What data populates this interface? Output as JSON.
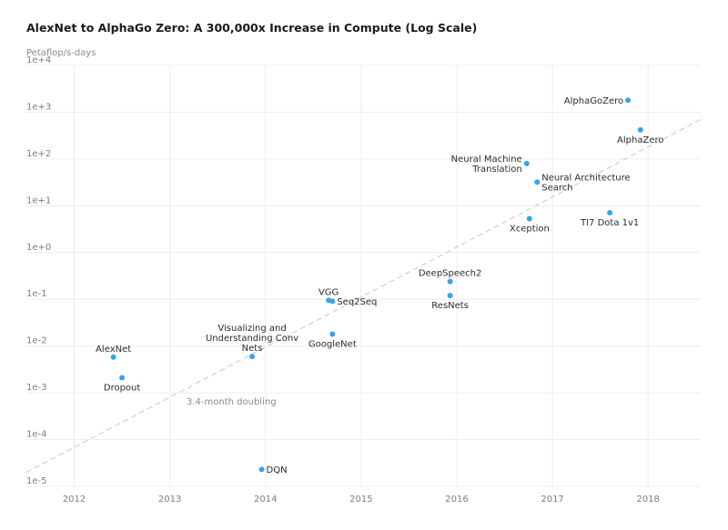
{
  "chart_data": {
    "type": "scatter",
    "title": "AlexNet to AlphaGo Zero: A 300,000x Increase in Compute (Log Scale)",
    "ylabel": "Petaflop/s-days",
    "xlabel": "",
    "yscale": "log",
    "ylim": [
      1e-05,
      10000
    ],
    "xlim": [
      2011.5,
      2018.55
    ],
    "y_ticks": [
      {
        "value": 10000,
        "label": "1e+4"
      },
      {
        "value": 1000,
        "label": "1e+3"
      },
      {
        "value": 100,
        "label": "1e+2"
      },
      {
        "value": 10,
        "label": "1e+1"
      },
      {
        "value": 1,
        "label": "1e+0"
      },
      {
        "value": 0.1,
        "label": "1e-1"
      },
      {
        "value": 0.01,
        "label": "1e-2"
      },
      {
        "value": 0.001,
        "label": "1e-3"
      },
      {
        "value": 0.0001,
        "label": "1e-4"
      },
      {
        "value": 1e-05,
        "label": "1e-5"
      }
    ],
    "x_ticks": [
      {
        "value": 2012,
        "label": "2012"
      },
      {
        "value": 2013,
        "label": "2013"
      },
      {
        "value": 2014,
        "label": "2014"
      },
      {
        "value": 2015,
        "label": "2015"
      },
      {
        "value": 2016,
        "label": "2016"
      },
      {
        "value": 2017,
        "label": "2017"
      },
      {
        "value": 2018,
        "label": "2018"
      }
    ],
    "grid": true,
    "color": "#3aa3e3",
    "trend": {
      "label": "3.4-month doubling",
      "start": [
        2011.5,
        2e-05
      ],
      "end": [
        2018.55,
        700
      ]
    },
    "points": [
      {
        "name": "AlexNet",
        "x": 2012.41,
        "y": 0.0058,
        "lines": [
          "AlexNet"
        ],
        "label_pos": "above"
      },
      {
        "name": "Dropout",
        "x": 2012.5,
        "y": 0.0021,
        "lines": [
          "Dropout"
        ],
        "label_pos": "below"
      },
      {
        "name": "Visualizing and Understanding Conv Nets",
        "x": 2013.86,
        "y": 0.006,
        "lines": [
          "Visualizing and",
          "Understanding Conv",
          "Nets"
        ],
        "label_pos": "above"
      },
      {
        "name": "DQN",
        "x": 2013.96,
        "y": 2.3e-05,
        "lines": [
          "DQN"
        ],
        "label_pos": "right"
      },
      {
        "name": "VGG",
        "x": 2014.66,
        "y": 0.095,
        "lines": [
          "VGG"
        ],
        "label_pos": "above"
      },
      {
        "name": "Seq2Seq",
        "x": 2014.7,
        "y": 0.091,
        "lines": [
          "Seq2Seq"
        ],
        "label_pos": "right"
      },
      {
        "name": "GoogleNet",
        "x": 2014.7,
        "y": 0.018,
        "lines": [
          "GoogleNet"
        ],
        "label_pos": "below"
      },
      {
        "name": "DeepSpeech2",
        "x": 2015.93,
        "y": 0.24,
        "lines": [
          "DeepSpeech2"
        ],
        "label_pos": "above"
      },
      {
        "name": "ResNets",
        "x": 2015.93,
        "y": 0.12,
        "lines": [
          "ResNets"
        ],
        "label_pos": "below"
      },
      {
        "name": "Neural Machine Translation",
        "x": 2016.73,
        "y": 80,
        "lines": [
          "Neural Machine",
          "Translation"
        ],
        "label_pos": "left"
      },
      {
        "name": "Neural Architecture Search",
        "x": 2016.84,
        "y": 32,
        "lines": [
          "Neural Architecture",
          "Search"
        ],
        "label_pos": "right"
      },
      {
        "name": "Xception",
        "x": 2016.76,
        "y": 5.3,
        "lines": [
          "Xception"
        ],
        "label_pos": "below"
      },
      {
        "name": "TI7 Dota 1v1",
        "x": 2017.6,
        "y": 7.1,
        "lines": [
          "TI7 Dota 1v1"
        ],
        "label_pos": "below"
      },
      {
        "name": "AlphaGoZero",
        "x": 2017.79,
        "y": 1800,
        "lines": [
          "AlphaGoZero"
        ],
        "label_pos": "left"
      },
      {
        "name": "AlphaZero",
        "x": 2017.92,
        "y": 420,
        "lines": [
          "AlphaZero"
        ],
        "label_pos": "below"
      }
    ]
  }
}
